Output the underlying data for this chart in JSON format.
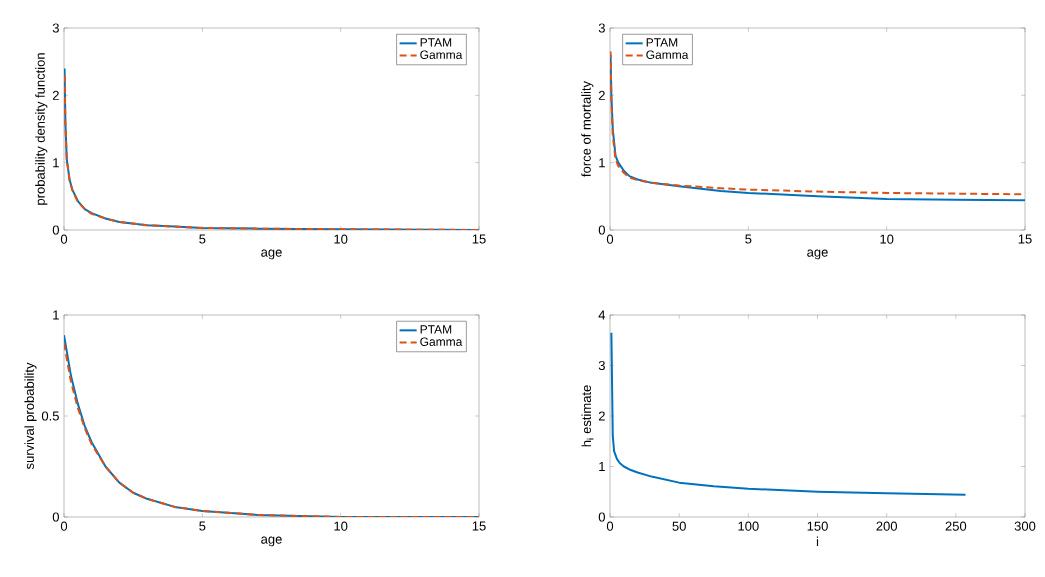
{
  "chart_data": [
    {
      "type": "line",
      "xlabel": "age",
      "ylabel": "probability density function",
      "xlim": [
        0,
        15
      ],
      "ylim": [
        0,
        3
      ],
      "xticks": [
        0,
        5,
        10,
        15
      ],
      "yticks": [
        0,
        1,
        2,
        3
      ],
      "legend": "top right",
      "grid": false,
      "series": [
        {
          "name": "PTAM",
          "color": "#0072bd",
          "line_style": "solid",
          "x": [
            0.02,
            0.05,
            0.1,
            0.2,
            0.3,
            0.5,
            0.75,
            1,
            1.5,
            2,
            3,
            4,
            5,
            7,
            10,
            15
          ],
          "values": [
            2.4,
            1.6,
            1.05,
            0.75,
            0.6,
            0.43,
            0.31,
            0.25,
            0.17,
            0.12,
            0.07,
            0.05,
            0.03,
            0.02,
            0.01,
            0
          ]
        },
        {
          "name": "Gamma",
          "color": "#d95319",
          "line_style": "dashed",
          "x": [
            0.02,
            0.05,
            0.1,
            0.2,
            0.3,
            0.5,
            0.75,
            1,
            1.5,
            2,
            3,
            4,
            5,
            7,
            10,
            15
          ],
          "values": [
            2.3,
            1.55,
            1.05,
            0.74,
            0.59,
            0.42,
            0.31,
            0.24,
            0.17,
            0.12,
            0.07,
            0.05,
            0.03,
            0.02,
            0.01,
            0
          ]
        }
      ]
    },
    {
      "type": "line",
      "xlabel": "age",
      "ylabel": "force of mortality",
      "xlim": [
        0,
        15
      ],
      "ylim": [
        0,
        3
      ],
      "xticks": [
        0,
        5,
        10,
        15
      ],
      "yticks": [
        0,
        1,
        2,
        3
      ],
      "legend": "top left",
      "grid": false,
      "series": [
        {
          "name": "PTAM",
          "color": "#0072bd",
          "line_style": "solid",
          "x": [
            0.02,
            0.05,
            0.1,
            0.2,
            0.3,
            0.5,
            0.7,
            1,
            1.5,
            2.5,
            4,
            5,
            7.5,
            10,
            12.5,
            15
          ],
          "values": [
            2.6,
            2.0,
            1.5,
            1.1,
            1.0,
            0.88,
            0.8,
            0.75,
            0.7,
            0.65,
            0.58,
            0.55,
            0.5,
            0.46,
            0.45,
            0.44
          ]
        },
        {
          "name": "Gamma",
          "color": "#d95319",
          "line_style": "dashed",
          "x": [
            0.02,
            0.05,
            0.1,
            0.2,
            0.3,
            0.5,
            0.7,
            1,
            1.5,
            2.5,
            4,
            5,
            7.5,
            10,
            12.5,
            15
          ],
          "values": [
            2.65,
            1.9,
            1.4,
            1.05,
            0.95,
            0.85,
            0.78,
            0.74,
            0.7,
            0.66,
            0.62,
            0.6,
            0.57,
            0.55,
            0.54,
            0.53
          ]
        }
      ]
    },
    {
      "type": "line",
      "xlabel": "age",
      "ylabel": "survival probability",
      "xlim": [
        0,
        15
      ],
      "ylim": [
        0,
        1
      ],
      "xticks": [
        0,
        5,
        10,
        15
      ],
      "yticks": [
        0,
        0.5,
        1
      ],
      "legend": "top right",
      "grid": false,
      "series": [
        {
          "name": "PTAM",
          "color": "#0072bd",
          "line_style": "solid",
          "x": [
            0,
            0.25,
            0.5,
            0.75,
            1,
            1.5,
            2,
            2.5,
            3,
            4,
            5,
            7,
            10,
            15
          ],
          "values": [
            0.9,
            0.7,
            0.56,
            0.45,
            0.37,
            0.25,
            0.17,
            0.12,
            0.09,
            0.05,
            0.03,
            0.01,
            0,
            0
          ]
        },
        {
          "name": "Gamma",
          "color": "#d95319",
          "line_style": "dashed",
          "x": [
            0,
            0.25,
            0.5,
            0.75,
            1,
            1.5,
            2,
            2.5,
            3,
            4,
            5,
            7,
            10,
            15
          ],
          "values": [
            0.86,
            0.67,
            0.54,
            0.44,
            0.36,
            0.25,
            0.17,
            0.12,
            0.09,
            0.05,
            0.03,
            0.01,
            0,
            0
          ]
        }
      ]
    },
    {
      "type": "line",
      "xlabel": "i",
      "ylabel": "h$_{i}$ estimate",
      "xlim": [
        0,
        300
      ],
      "ylim": [
        0,
        4
      ],
      "xticks": [
        0,
        50,
        100,
        150,
        200,
        250,
        300
      ],
      "yticks": [
        0,
        1,
        2,
        3,
        4
      ],
      "grid": false,
      "series": [
        {
          "color": "#0072bd",
          "line_style": "solid",
          "x": [
            1,
            2,
            3,
            5,
            7,
            10,
            15,
            20,
            30,
            50,
            75,
            100,
            150,
            200,
            257
          ],
          "values": [
            3.65,
            1.6,
            1.3,
            1.15,
            1.07,
            1.0,
            0.93,
            0.88,
            0.8,
            0.68,
            0.61,
            0.56,
            0.5,
            0.47,
            0.44
          ]
        }
      ]
    }
  ]
}
